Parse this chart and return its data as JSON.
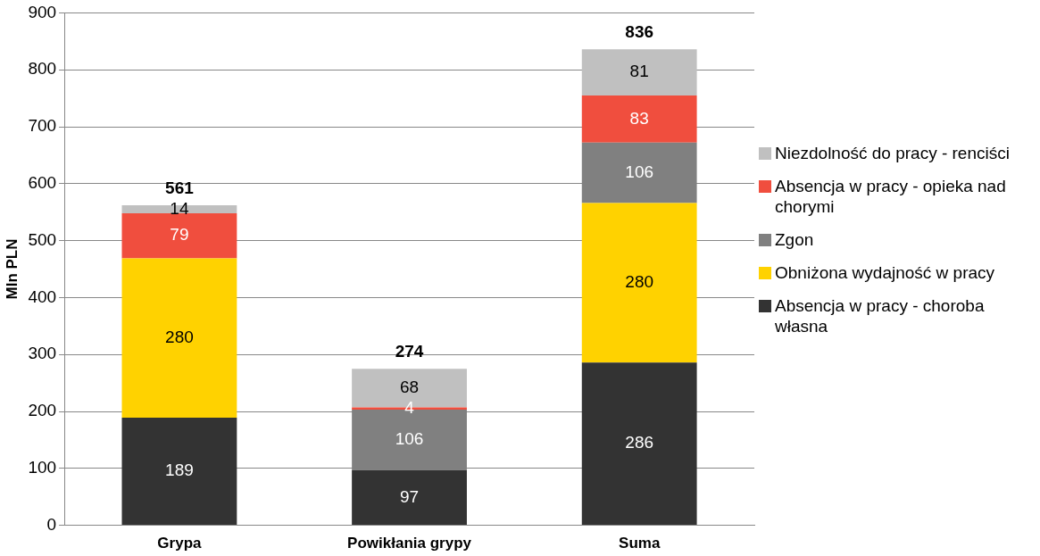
{
  "chart_data": {
    "type": "bar",
    "stacked": true,
    "ylabel": "Mln PLN",
    "categories": [
      "Grypa",
      "Powikłania grypy",
      "Suma"
    ],
    "series": [
      {
        "name": "Absencja w pracy - choroba własna",
        "color": "#333333",
        "values": [
          189,
          97,
          286
        ]
      },
      {
        "name": "Obniżona wydajność w pracy",
        "color": "#ffd200",
        "values": [
          280,
          null,
          280
        ]
      },
      {
        "name": "Zgon",
        "color": "#808080",
        "values": [
          null,
          106,
          106
        ]
      },
      {
        "name": "Absencja w pracy - opieka nad chorymi",
        "color": "#f04e3e",
        "values": [
          79,
          4,
          83
        ]
      },
      {
        "name": "Niezdolność do pracy - renciści",
        "color": "#c0c0c0",
        "values": [
          14,
          68,
          81
        ]
      }
    ],
    "totals": [
      "561",
      "274",
      "836"
    ],
    "data_labels": true,
    "ylim": [
      0,
      900
    ],
    "yticks": [
      0,
      100,
      200,
      300,
      400,
      500,
      600,
      700,
      800,
      900
    ],
    "grid": "y",
    "legend": "right"
  }
}
